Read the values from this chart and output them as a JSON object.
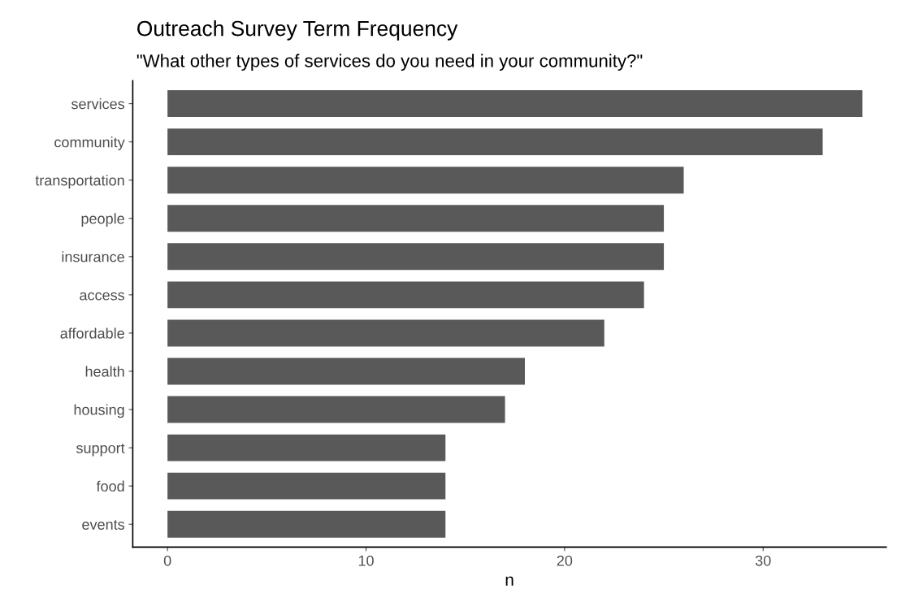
{
  "chart_data": {
    "type": "bar",
    "orientation": "horizontal",
    "title": "Outreach Survey Term Frequency",
    "subtitle": "\"What other types of services do you need in your community?\"",
    "xlabel": "n",
    "categories": [
      "services",
      "community",
      "transportation",
      "people",
      "insurance",
      "access",
      "affordable",
      "health",
      "housing",
      "support",
      "food",
      "events"
    ],
    "values": [
      35,
      33,
      26,
      25,
      25,
      24,
      22,
      18,
      17,
      14,
      14,
      14
    ],
    "color": "#595959",
    "xlim": [
      -1.75,
      36.2
    ],
    "xticks": [
      0,
      10,
      20,
      30
    ],
    "grid": false,
    "legend": false
  }
}
